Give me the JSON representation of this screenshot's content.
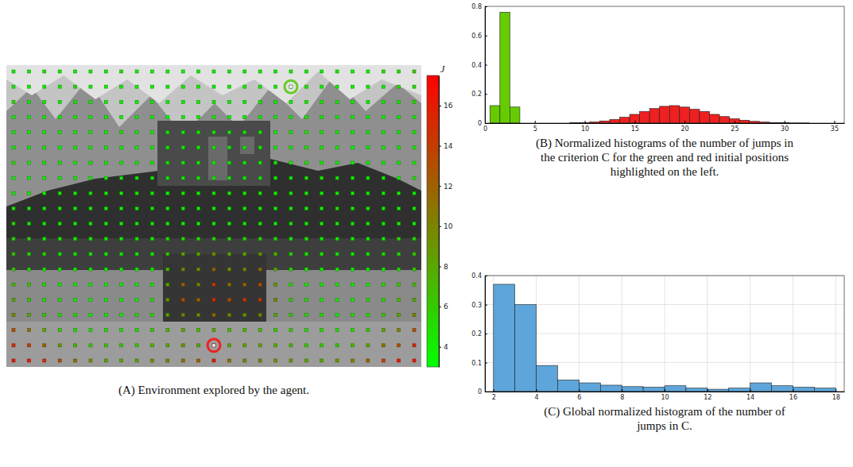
{
  "chart_data": [
    {
      "type": "heatmap",
      "title": "(A) Environment explored by the agent.",
      "cells": [
        [
          4,
          4,
          5,
          4,
          4,
          4,
          4,
          5,
          4,
          4,
          4,
          4,
          4,
          4,
          4,
          4,
          4,
          4,
          4,
          4,
          4,
          4,
          4,
          4,
          5,
          5,
          6
        ],
        [
          4,
          4,
          4,
          4,
          5,
          4,
          4,
          4,
          4,
          4,
          4,
          4,
          4,
          4,
          4,
          4,
          4,
          4,
          3,
          4,
          4,
          4,
          4,
          4,
          4,
          5,
          5
        ],
        [
          5,
          4,
          4,
          4,
          4,
          4,
          4,
          4,
          4,
          4,
          4,
          4,
          4,
          4,
          4,
          4,
          4,
          4,
          4,
          4,
          4,
          4,
          4,
          4,
          4,
          4,
          5
        ],
        [
          4,
          4,
          4,
          4,
          4,
          4,
          4,
          4,
          4,
          4,
          3,
          4,
          4,
          4,
          4,
          4,
          4,
          4,
          4,
          4,
          4,
          4,
          4,
          4,
          4,
          4,
          4
        ],
        [
          4,
          4,
          4,
          4,
          4,
          4,
          4,
          5,
          4,
          4,
          4,
          4,
          4,
          4,
          4,
          4,
          4,
          4,
          4,
          4,
          4,
          4,
          4,
          4,
          4,
          4,
          4
        ],
        [
          4,
          4,
          4,
          3,
          4,
          4,
          4,
          4,
          4,
          4,
          4,
          4,
          4,
          4,
          4,
          4,
          4,
          4,
          4,
          4,
          4,
          4,
          3,
          4,
          4,
          4,
          4
        ],
        [
          5,
          4,
          4,
          4,
          4,
          4,
          4,
          4,
          4,
          4,
          4,
          4,
          4,
          4,
          4,
          4,
          4,
          4,
          4,
          4,
          4,
          4,
          4,
          4,
          4,
          4,
          4
        ],
        [
          4,
          4,
          4,
          4,
          4,
          4,
          4,
          4,
          4,
          4,
          4,
          4,
          4,
          4,
          4,
          4,
          4,
          4,
          4,
          4,
          4,
          4,
          4,
          4,
          4,
          4,
          5
        ],
        [
          4,
          4,
          4,
          4,
          4,
          4,
          4,
          4,
          4,
          4,
          3,
          4,
          4,
          4,
          4,
          4,
          4,
          4,
          4,
          4,
          4,
          4,
          4,
          4,
          4,
          4,
          4
        ],
        [
          4,
          4,
          4,
          4,
          4,
          4,
          4,
          4,
          4,
          4,
          4,
          4,
          4,
          4,
          4,
          4,
          4,
          4,
          4,
          4,
          4,
          5,
          4,
          4,
          4,
          4,
          4
        ],
        [
          5,
          4,
          4,
          4,
          4,
          4,
          4,
          4,
          4,
          4,
          4,
          4,
          4,
          4,
          4,
          4,
          4,
          4,
          4,
          4,
          4,
          4,
          4,
          4,
          4,
          4,
          4
        ],
        [
          5,
          5,
          4,
          4,
          4,
          4,
          4,
          4,
          4,
          4,
          5,
          5,
          5,
          5,
          5,
          5,
          5,
          5,
          4,
          4,
          4,
          4,
          4,
          4,
          4,
          5,
          5
        ],
        [
          6,
          5,
          5,
          4,
          4,
          4,
          4,
          4,
          4,
          4,
          6,
          8,
          8,
          9,
          8,
          8,
          9,
          7,
          5,
          4,
          4,
          4,
          4,
          4,
          5,
          5,
          6
        ],
        [
          6,
          5,
          4,
          4,
          4,
          4,
          4,
          4,
          4,
          4,
          7,
          10,
          9,
          12,
          9,
          10,
          11,
          8,
          5,
          4,
          4,
          4,
          4,
          4,
          4,
          5,
          6
        ],
        [
          7,
          6,
          5,
          4,
          4,
          4,
          4,
          4,
          4,
          4,
          8,
          12,
          10,
          14,
          11,
          12,
          13,
          9,
          5,
          4,
          4,
          4,
          4,
          4,
          5,
          6,
          7
        ],
        [
          8,
          6,
          5,
          5,
          4,
          4,
          4,
          4,
          4,
          5,
          9,
          13,
          12,
          15,
          13,
          14,
          14,
          10,
          6,
          5,
          4,
          4,
          4,
          5,
          5,
          7,
          8
        ],
        [
          10,
          8,
          6,
          5,
          5,
          4,
          4,
          4,
          5,
          5,
          8,
          10,
          9,
          11,
          10,
          9,
          10,
          8,
          6,
          5,
          5,
          4,
          5,
          5,
          6,
          8,
          10
        ],
        [
          13,
          11,
          8,
          6,
          5,
          5,
          5,
          5,
          5,
          6,
          7,
          8,
          7,
          8,
          7,
          7,
          7,
          6,
          6,
          5,
          5,
          5,
          5,
          6,
          8,
          10,
          13
        ],
        [
          15,
          14,
          12,
          9,
          7,
          6,
          6,
          6,
          6,
          7,
          8,
          9,
          8,
          17,
          8,
          8,
          8,
          7,
          7,
          6,
          6,
          6,
          7,
          8,
          11,
          13,
          15
        ],
        [
          16,
          16,
          15,
          13,
          11,
          9,
          8,
          8,
          8,
          9,
          10,
          11,
          12,
          16,
          11,
          10,
          10,
          9,
          9,
          8,
          8,
          9,
          10,
          12,
          14,
          16,
          16
        ]
      ],
      "colorbar_label": "J",
      "color_range": [
        3,
        17.5
      ],
      "color_ticks": [
        4,
        6,
        8,
        10,
        12,
        14,
        16
      ],
      "colorscale": [
        "#00ff00",
        "#ff0000"
      ],
      "highlighted_cells": [
        {
          "row": 1,
          "col": 18,
          "color": "#66cc22"
        },
        {
          "row": 18,
          "col": 13,
          "color": "#ee2222"
        }
      ]
    },
    {
      "type": "histogram",
      "title": "(B) Normalized histograms of the number of jumps in the criterion C for the green and red initial positions highlighted on the left.",
      "bins": [
        0.5,
        1.5,
        2.5,
        3.5,
        4.5,
        5.5,
        6.5,
        7.5,
        8.5,
        9.5,
        10.5,
        11.5,
        12.5,
        13.5,
        14.5,
        15.5,
        16.5,
        17.5,
        18.5,
        19.5,
        20.5,
        21.5,
        22.5,
        23.5,
        24.5,
        25.5,
        26.5,
        27.5,
        28.5,
        29.5,
        30.5,
        31.5,
        32.5,
        33.5,
        34.5,
        35.5
      ],
      "series": [
        {
          "color": "#66cc00",
          "values": [
            0.12,
            0.76,
            0.11,
            0,
            0,
            0,
            0,
            0,
            0,
            0,
            0,
            0,
            0,
            0,
            0,
            0,
            0,
            0,
            0,
            0,
            0,
            0,
            0,
            0,
            0,
            0,
            0,
            0,
            0,
            0,
            0,
            0,
            0,
            0,
            0
          ]
        },
        {
          "color": "#ee2020",
          "values": [
            0,
            0,
            0,
            0,
            0,
            0,
            0,
            0,
            0.002,
            0.004,
            0.008,
            0.015,
            0.025,
            0.04,
            0.06,
            0.08,
            0.1,
            0.115,
            0.12,
            0.11,
            0.095,
            0.08,
            0.06,
            0.045,
            0.03,
            0.02,
            0.012,
            0.007,
            0.004,
            0.002,
            0.001,
            0.001,
            0,
            0,
            0
          ]
        }
      ],
      "xlim": [
        0,
        36
      ],
      "xticks": [
        0,
        5,
        10,
        15,
        20,
        25,
        30,
        35
      ],
      "ylim": [
        0,
        0.8
      ],
      "yticks": [
        0,
        0.2,
        0.4,
        0.6,
        0.8
      ],
      "grid": false
    },
    {
      "type": "histogram",
      "title": "(C) Global normalized histogram of the number of jumps in C.",
      "bins": [
        2,
        3,
        4,
        5,
        6,
        7,
        8,
        9,
        10,
        11,
        12,
        13,
        14,
        15,
        16,
        17,
        18
      ],
      "series": [
        {
          "color": "#5da5da",
          "values": [
            0.37,
            0.3,
            0.09,
            0.04,
            0.03,
            0.022,
            0.017,
            0.015,
            0.02,
            0.012,
            0.008,
            0.012,
            0.03,
            0.02,
            0.015,
            0.012
          ]
        }
      ],
      "xlim": [
        1.6,
        18.4
      ],
      "xticks": [
        2,
        4,
        6,
        8,
        10,
        12,
        14,
        16,
        18
      ],
      "ylim": [
        0,
        0.4
      ],
      "yticks": [
        0,
        0.1,
        0.2,
        0.3,
        0.4
      ],
      "grid": true
    }
  ]
}
